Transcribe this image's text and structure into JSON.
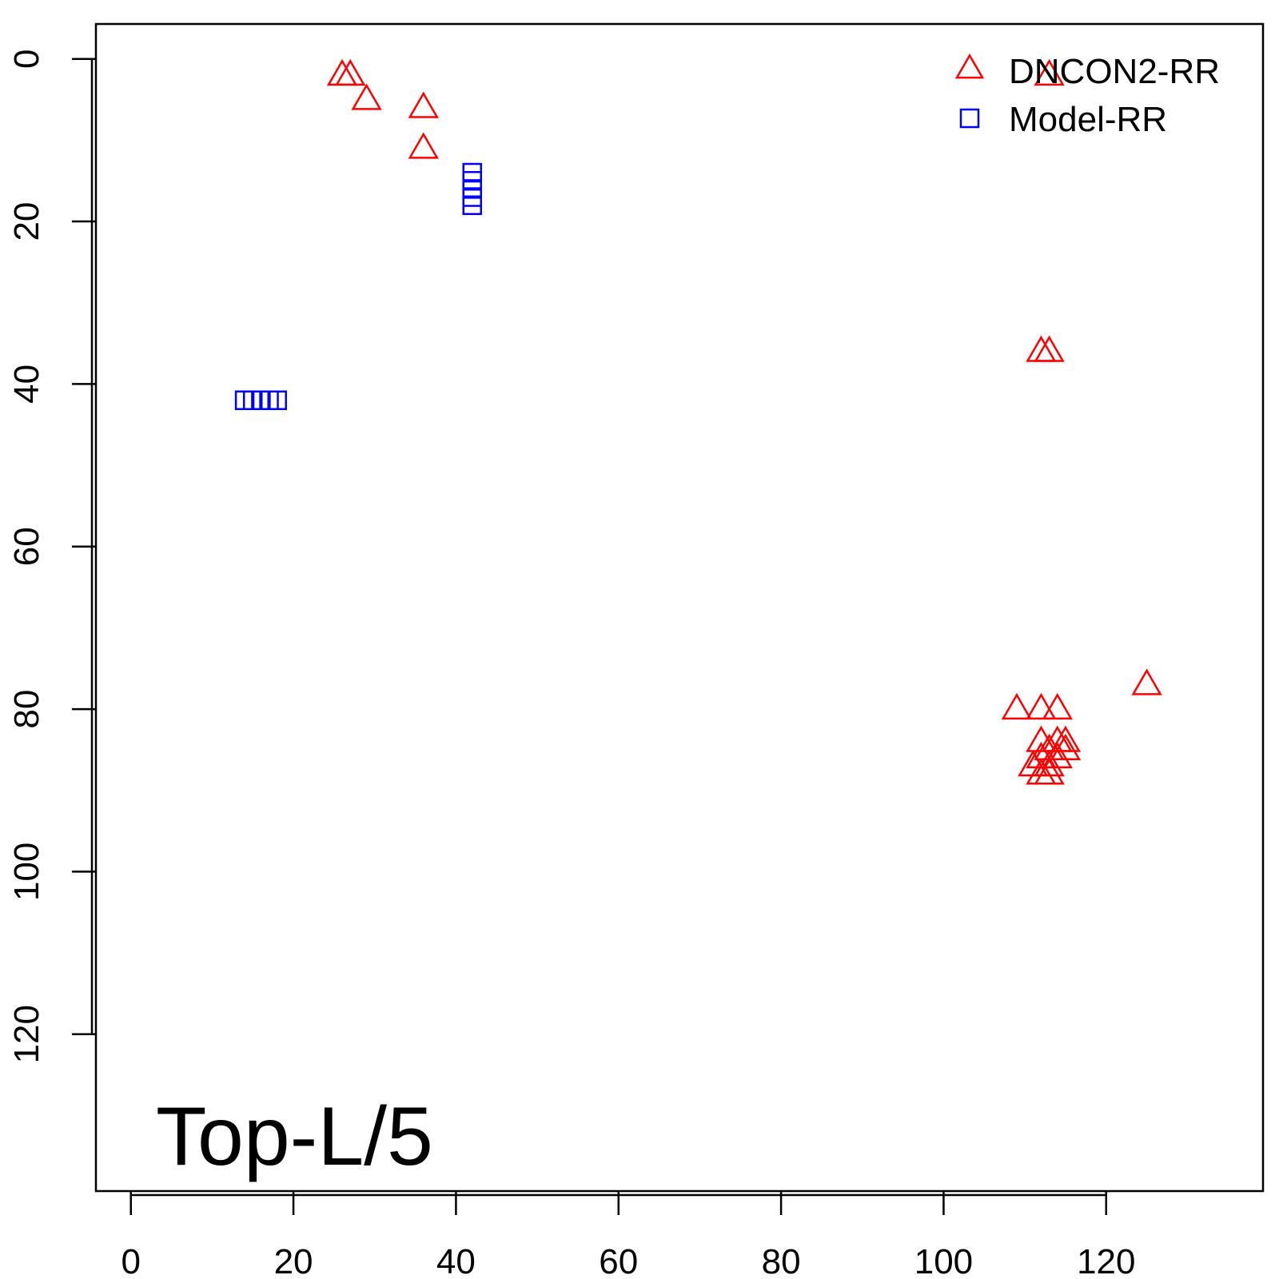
{
  "chart_data": {
    "type": "scatter",
    "title": "",
    "xlabel": "",
    "ylabel": "",
    "xlim": [
      -4.3,
      139.3
    ],
    "ylim": [
      -4.3,
      139.3
    ],
    "y_reversed": true,
    "x_ticks": [
      0,
      20,
      40,
      60,
      80,
      100,
      120
    ],
    "y_ticks": [
      0,
      20,
      40,
      60,
      80,
      100,
      120
    ],
    "grid": false,
    "legend_position": "top-right",
    "annotation": "Top-L/5",
    "series": [
      {
        "name": "DNCON2-RR",
        "marker": "triangle",
        "color": "#ff0000",
        "points": [
          [
            26,
            2
          ],
          [
            27,
            2
          ],
          [
            29,
            5
          ],
          [
            36,
            6
          ],
          [
            36,
            11
          ],
          [
            113,
            2
          ],
          [
            112,
            36
          ],
          [
            113,
            36
          ],
          [
            109,
            80
          ],
          [
            112,
            80
          ],
          [
            114,
            80
          ],
          [
            125,
            77
          ],
          [
            112,
            84
          ],
          [
            114,
            84
          ],
          [
            115,
            84
          ],
          [
            113,
            85
          ],
          [
            115,
            85
          ],
          [
            112,
            86
          ],
          [
            114,
            86
          ],
          [
            111,
            87
          ],
          [
            113,
            87
          ],
          [
            112,
            88
          ],
          [
            113,
            88
          ]
        ]
      },
      {
        "name": "Model-RR",
        "marker": "square",
        "color": "#0000ff",
        "points": [
          [
            42,
            14
          ],
          [
            42,
            15
          ],
          [
            42,
            16
          ],
          [
            42,
            17
          ],
          [
            42,
            18
          ],
          [
            14,
            42
          ],
          [
            15,
            42
          ],
          [
            16,
            42
          ],
          [
            17,
            42
          ],
          [
            18,
            42
          ]
        ]
      }
    ]
  }
}
